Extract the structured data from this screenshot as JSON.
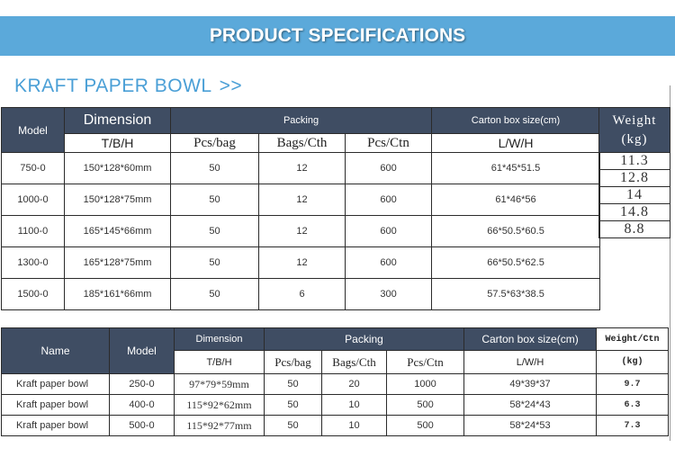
{
  "banner": {
    "title": "PRODUCT SPECIFICATIONS"
  },
  "section": {
    "title": "KRAFT PAPER BOWL",
    "arrows": ">>"
  },
  "colors": {
    "banner": "#5ba9da",
    "header": "#3f4d63",
    "accent": "#4a9fd6"
  },
  "table1": {
    "headers": {
      "model": "Model",
      "dimension": "Dimension",
      "packing": "Packing",
      "carton": "Carton box size(cm)",
      "weight": "Weight",
      "weight_unit": "(kg)",
      "tbh": "T/B/H",
      "pcs_bag": "Pcs/bag",
      "bags_cth": "Bags/Cth",
      "pcs_ctn": "Pcs/Ctn",
      "lwh": "L/W/H"
    },
    "rows": [
      {
        "model": "750-0",
        "dimension": "150*128*60mm",
        "pcs_bag": "50",
        "bags_cth": "12",
        "pcs_ctn": "600",
        "carton": "61*45*51.5",
        "weight": "11.3"
      },
      {
        "model": "1000-0",
        "dimension": "150*128*75mm",
        "pcs_bag": "50",
        "bags_cth": "12",
        "pcs_ctn": "600",
        "carton": "61*46*56",
        "weight": "12.8"
      },
      {
        "model": "1100-0",
        "dimension": "165*145*66mm",
        "pcs_bag": "50",
        "bags_cth": "12",
        "pcs_ctn": "600",
        "carton": "66*50.5*60.5",
        "weight": "14"
      },
      {
        "model": "1300-0",
        "dimension": "165*128*75mm",
        "pcs_bag": "50",
        "bags_cth": "12",
        "pcs_ctn": "600",
        "carton": "66*50.5*62.5",
        "weight": "14.8"
      },
      {
        "model": "1500-0",
        "dimension": "185*161*66mm",
        "pcs_bag": "50",
        "bags_cth": "6",
        "pcs_ctn": "300",
        "carton": "57.5*63*38.5",
        "weight": "8.8"
      }
    ]
  },
  "table2": {
    "headers": {
      "name": "Name",
      "model": "Model",
      "dimension": "Dimension",
      "packing": "Packing",
      "carton": "Carton box size(cm)",
      "weight": "Weight/Ctn",
      "tbh": "T/B/H",
      "pcs_bag": "Pcs/bag",
      "bags_cth": "Bags/Cth",
      "pcs_ctn": "Pcs/Ctn",
      "lwh": "L/W/H",
      "weight_unit": "(kg)"
    },
    "rows": [
      {
        "name": "Kraft paper bowl",
        "model": "250-0",
        "dimension": "97*79*59mm",
        "pcs_bag": "50",
        "bags_cth": "20",
        "pcs_ctn": "1000",
        "carton": "49*39*37",
        "weight": "9.7"
      },
      {
        "name": "Kraft paper bowl",
        "model": "400-0",
        "dimension": "115*92*62mm",
        "pcs_bag": "50",
        "bags_cth": "10",
        "pcs_ctn": "500",
        "carton": "58*24*43",
        "weight": "6.3"
      },
      {
        "name": "Kraft paper bowl",
        "model": "500-0",
        "dimension": "115*92*77mm",
        "pcs_bag": "50",
        "bags_cth": "10",
        "pcs_ctn": "500",
        "carton": "58*24*53",
        "weight": "7.3"
      }
    ]
  }
}
